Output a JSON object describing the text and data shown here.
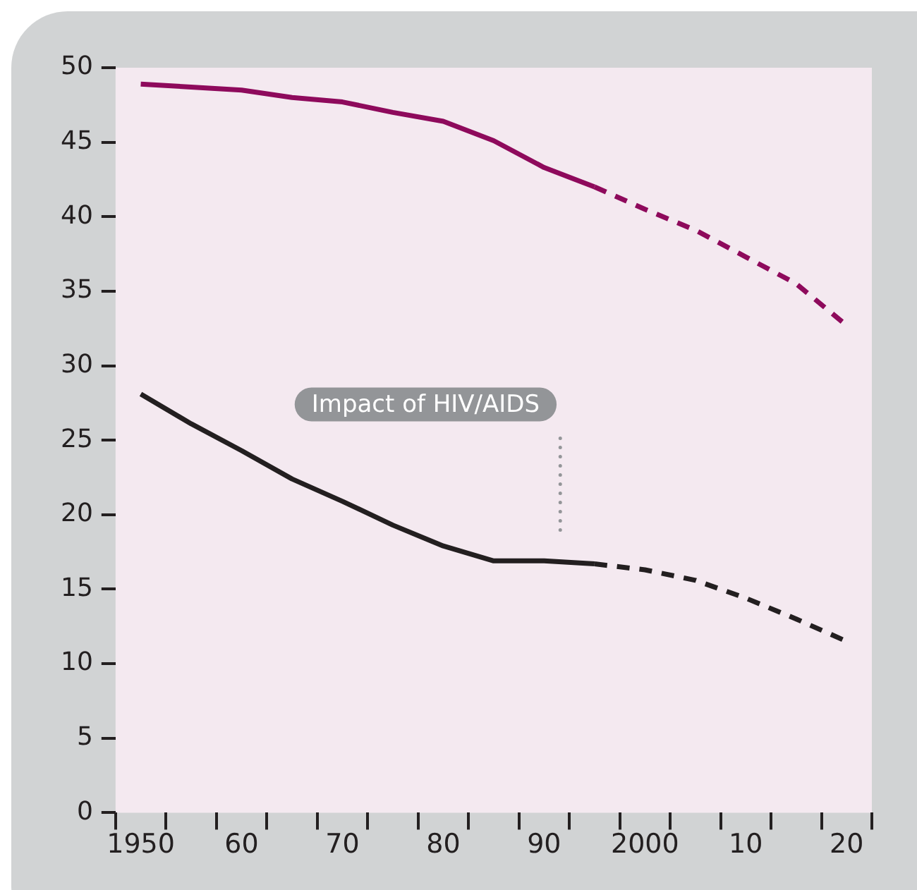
{
  "chart_data": {
    "type": "line",
    "x": [
      1950,
      1955,
      1960,
      1965,
      1970,
      1975,
      1980,
      1985,
      1990,
      1995
    ],
    "series": [
      {
        "color": "#8e0a5c",
        "line_style": "solid",
        "values": [
          48.9,
          48.7,
          48.5,
          48.0,
          47.7,
          47.0,
          46.4,
          45.1,
          43.3,
          42.0
        ]
      },
      {
        "color": "#8e0a5c",
        "line_style": "dashed",
        "x": [
          1995,
          2000,
          2005,
          2010,
          2015,
          2020
        ],
        "values": [
          42.0,
          40.5,
          39.1,
          37.3,
          35.5,
          32.7
        ]
      },
      {
        "color": "#231f20",
        "line_style": "solid",
        "values": [
          28.1,
          26.1,
          24.3,
          22.4,
          20.9,
          19.3,
          17.9,
          16.9,
          16.9,
          16.7
        ]
      },
      {
        "color": "#231f20",
        "line_style": "dashed",
        "x": [
          1995,
          2000,
          2005,
          2010,
          2015,
          2020
        ],
        "values": [
          16.7,
          16.3,
          15.6,
          14.4,
          13.0,
          11.5
        ]
      }
    ],
    "annotations": [
      "Impact of HIV/AIDS"
    ],
    "xlim": [
      1947.5,
      2022.5
    ],
    "xticks": [
      {
        "value": 1947.5,
        "label": null
      },
      {
        "value": 1950,
        "label": "1950"
      },
      {
        "value": 1952.5,
        "label": null
      },
      {
        "value": 1957.5,
        "label": null
      },
      {
        "value": 1960,
        "label": "60"
      },
      {
        "value": 1962.5,
        "label": null
      },
      {
        "value": 1967.5,
        "label": null
      },
      {
        "value": 1970,
        "label": "70"
      },
      {
        "value": 1972.5,
        "label": null
      },
      {
        "value": 1977.5,
        "label": null
      },
      {
        "value": 1980,
        "label": "80"
      },
      {
        "value": 1982.5,
        "label": null
      },
      {
        "value": 1987.5,
        "label": null
      },
      {
        "value": 1990,
        "label": "90"
      },
      {
        "value": 1992.5,
        "label": null
      },
      {
        "value": 1997.5,
        "label": null
      },
      {
        "value": 2000,
        "label": "2000"
      },
      {
        "value": 2002.5,
        "label": null
      },
      {
        "value": 2007.5,
        "label": null
      },
      {
        "value": 2010,
        "label": "10"
      },
      {
        "value": 2012.5,
        "label": null
      },
      {
        "value": 2017.5,
        "label": null
      },
      {
        "value": 2020,
        "label": "20"
      },
      {
        "value": 2022.5,
        "label": null
      }
    ],
    "ylim": [
      0,
      50
    ],
    "yticks": [
      0,
      5,
      10,
      15,
      20,
      25,
      30,
      35,
      40,
      45,
      50
    ],
    "grid": false,
    "legend": false,
    "marker": "none"
  }
}
